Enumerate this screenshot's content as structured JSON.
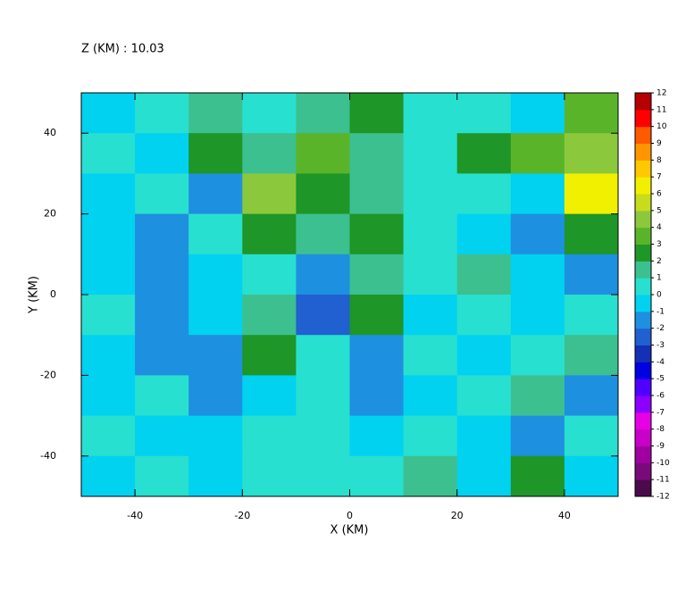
{
  "chart_data": {
    "type": "heatmap",
    "title": "Z (KM) : 10.03",
    "xlabel": "X (KM)",
    "ylabel": "Y (KM)",
    "xlim": [
      -50,
      50
    ],
    "ylim": [
      -50,
      50
    ],
    "xticks": [
      -40,
      -20,
      0,
      20,
      40
    ],
    "yticks": [
      -40,
      -20,
      0,
      20,
      40
    ],
    "x": [
      -45,
      -35,
      -25,
      -15,
      -5,
      5,
      15,
      25,
      35,
      45
    ],
    "y": [
      45,
      35,
      25,
      15,
      5,
      -5,
      -15,
      -25,
      -35,
      -45
    ],
    "z": [
      [
        -1,
        0,
        1,
        0,
        1,
        2,
        0,
        0,
        -1,
        3
      ],
      [
        0,
        -1,
        2,
        1,
        3,
        1,
        0,
        2,
        3,
        4
      ],
      [
        -1,
        0,
        -2,
        4,
        2,
        1,
        0,
        0,
        -1,
        6
      ],
      [
        -1,
        -2,
        0,
        2,
        1,
        2,
        0,
        -1,
        -2,
        2
      ],
      [
        -1,
        -2,
        -1,
        0,
        -2,
        1,
        0,
        1,
        -1,
        -2
      ],
      [
        0,
        -2,
        -1,
        1,
        -3,
        2,
        -1,
        0,
        -1,
        0
      ],
      [
        -1,
        -2,
        -2,
        2,
        0,
        -2,
        0,
        -1,
        0,
        1
      ],
      [
        -1,
        0,
        -2,
        -1,
        0,
        -2,
        -1,
        0,
        1,
        -2
      ],
      [
        0,
        -1,
        -1,
        0,
        0,
        -1,
        0,
        -1,
        -2,
        0
      ],
      [
        -1,
        0,
        -1,
        0,
        0,
        0,
        1,
        -1,
        2,
        -1
      ]
    ],
    "clim": [
      -12,
      12
    ],
    "cticks": [
      -12,
      -11,
      -10,
      -9,
      -8,
      -7,
      -6,
      -5,
      -4,
      -3,
      -2,
      -1,
      0,
      1,
      2,
      3,
      4,
      5,
      6,
      7,
      8,
      9,
      10,
      11,
      12
    ],
    "colors": [
      "#4b0a4b",
      "#7a0a7a",
      "#a000a0",
      "#c800c8",
      "#e600e6",
      "#8c00ff",
      "#5000ff",
      "#0000e0",
      "#1430b4",
      "#2060d0",
      "#1e90e0",
      "#00d2f0",
      "#28e0d0",
      "#3cc090",
      "#1e9628",
      "#5ab42a",
      "#8cc83c",
      "#c8dc1e",
      "#f0f000",
      "#ffc800",
      "#ff9600",
      "#ff5a00",
      "#ff0000",
      "#b40000"
    ]
  }
}
